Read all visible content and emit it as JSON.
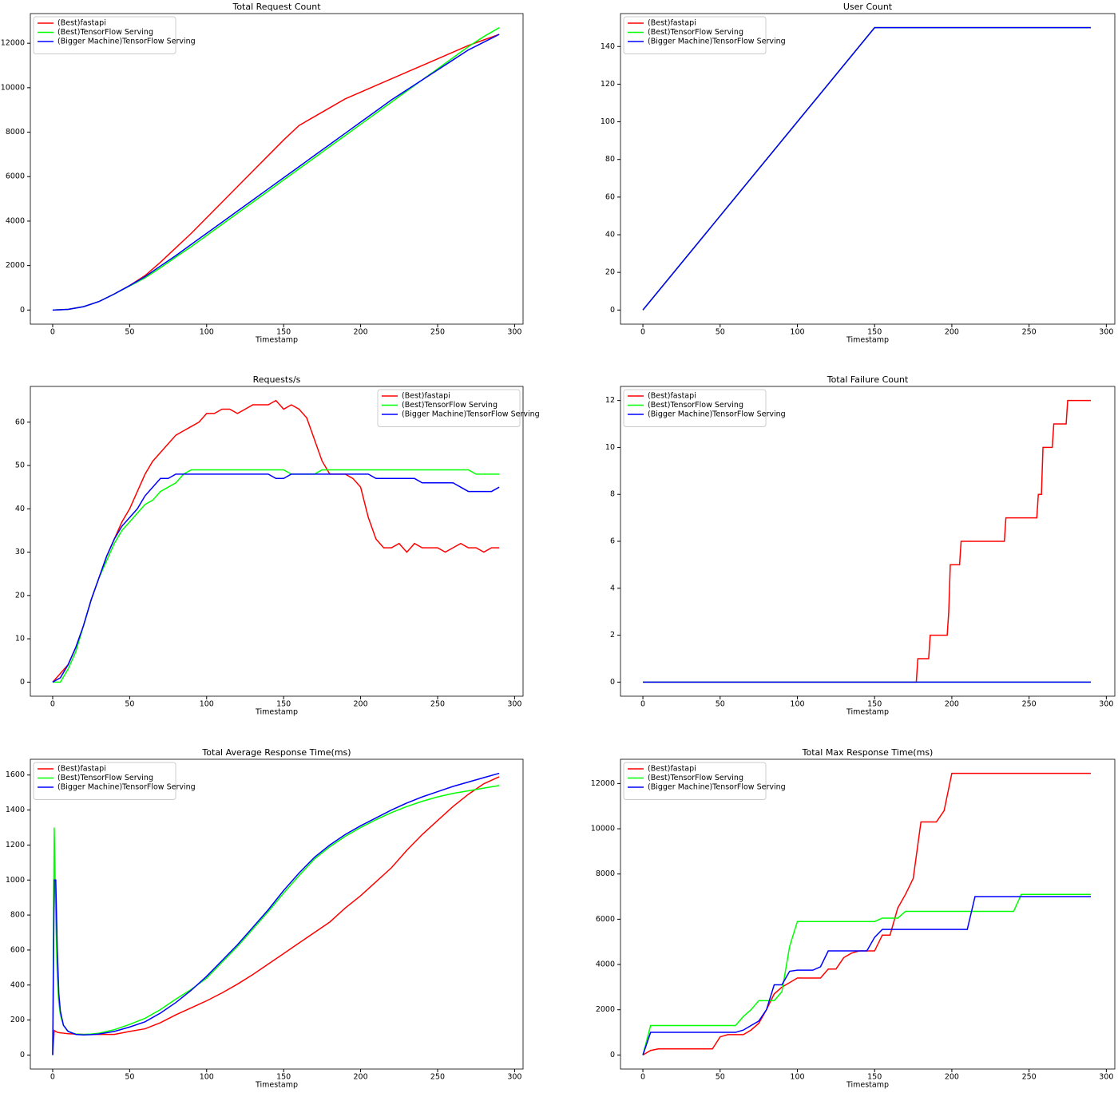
{
  "chart_data": [
    {
      "type": "line",
      "title": "Total Request Count",
      "x_label": "Timestamp",
      "legend": "upper left",
      "x": [
        0,
        10,
        20,
        30,
        40,
        50,
        60,
        70,
        80,
        90,
        100,
        110,
        120,
        130,
        140,
        150,
        160,
        170,
        180,
        190,
        200,
        210,
        220,
        230,
        240,
        250,
        260,
        270,
        280,
        290
      ],
      "series": [
        {
          "name": "(Best)fastapi",
          "color": "#ff0000",
          "values": [
            0,
            30,
            150,
            380,
            720,
            1100,
            1550,
            2150,
            2800,
            3450,
            4150,
            4850,
            5550,
            6250,
            6950,
            7650,
            8300,
            8700,
            9100,
            9500,
            9800,
            10100,
            10400,
            10700,
            11000,
            11300,
            11600,
            11900,
            12150,
            12400
          ]
        },
        {
          "name": "(Best)TensorFlow Serving",
          "color": "#00ff00",
          "values": [
            0,
            30,
            150,
            380,
            720,
            1080,
            1450,
            1900,
            2380,
            2850,
            3350,
            3850,
            4350,
            4850,
            5350,
            5850,
            6350,
            6850,
            7350,
            7850,
            8350,
            8850,
            9350,
            9850,
            10350,
            10850,
            11350,
            11850,
            12300,
            12700
          ]
        },
        {
          "name": "(Bigger Machine)TensorFlow Serving",
          "color": "#0000ff",
          "values": [
            0,
            30,
            150,
            380,
            720,
            1100,
            1500,
            1980,
            2450,
            2950,
            3450,
            3950,
            4450,
            4950,
            5450,
            5950,
            6450,
            6950,
            7450,
            7950,
            8450,
            8950,
            9450,
            9900,
            10350,
            10800,
            11250,
            11700,
            12050,
            12400
          ]
        }
      ],
      "xlim": [
        -14.5,
        305.5
      ],
      "xticks": [
        0,
        50,
        100,
        150,
        200,
        250,
        300
      ],
      "ylim": [
        -635,
        13335
      ],
      "yticks": [
        0,
        2000,
        4000,
        6000,
        8000,
        10000,
        12000
      ]
    },
    {
      "type": "line",
      "title": "User Count",
      "x_label": "Timestamp",
      "legend": "upper left",
      "x": [
        0,
        150,
        290
      ],
      "series": [
        {
          "name": "(Best)fastapi",
          "color": "#ff0000",
          "values": [
            0,
            150,
            150
          ]
        },
        {
          "name": "(Best)TensorFlow Serving",
          "color": "#00ff00",
          "values": [
            0,
            150,
            150
          ]
        },
        {
          "name": "(Bigger Machine)TensorFlow Serving",
          "color": "#0000ff",
          "values": [
            0,
            150,
            150
          ]
        }
      ],
      "xlim": [
        -14.5,
        305.5
      ],
      "xticks": [
        0,
        50,
        100,
        150,
        200,
        250,
        300
      ],
      "ylim": [
        -7.5,
        157.5
      ],
      "yticks": [
        0,
        20,
        40,
        60,
        80,
        100,
        120,
        140
      ]
    },
    {
      "type": "line",
      "title": "Requests/s",
      "x_label": "Timestamp",
      "legend": "upper right",
      "x": [
        0,
        5,
        10,
        15,
        20,
        25,
        30,
        35,
        40,
        45,
        50,
        55,
        60,
        65,
        70,
        75,
        80,
        85,
        90,
        95,
        100,
        105,
        110,
        115,
        120,
        125,
        130,
        135,
        140,
        145,
        150,
        155,
        160,
        165,
        170,
        175,
        180,
        185,
        190,
        195,
        200,
        205,
        210,
        215,
        220,
        225,
        230,
        235,
        240,
        245,
        250,
        255,
        260,
        265,
        270,
        275,
        280,
        285,
        290
      ],
      "series": [
        {
          "name": "(Best)fastapi",
          "color": "#ff0000",
          "values": [
            0,
            2,
            4,
            8,
            13,
            19,
            24,
            29,
            33,
            37,
            40,
            44,
            48,
            51,
            53,
            55,
            57,
            58,
            59,
            60,
            62,
            62,
            63,
            63,
            62,
            63,
            64,
            64,
            64,
            65,
            63,
            64,
            63,
            61,
            56,
            51,
            48,
            48,
            48,
            47,
            45,
            38,
            33,
            31,
            31,
            32,
            30,
            32,
            31,
            31,
            31,
            30,
            31,
            32,
            31,
            31,
            30,
            31,
            31
          ]
        },
        {
          "name": "(Best)TensorFlow Serving",
          "color": "#00ff00",
          "values": [
            0,
            0,
            3,
            7,
            13,
            19,
            24,
            28,
            32,
            35,
            37,
            39,
            41,
            42,
            44,
            45,
            46,
            48,
            49,
            49,
            49,
            49,
            49,
            49,
            49,
            49,
            49,
            49,
            49,
            49,
            49,
            48,
            48,
            48,
            48,
            49,
            49,
            49,
            49,
            49,
            49,
            49,
            49,
            49,
            49,
            49,
            49,
            49,
            49,
            49,
            49,
            49,
            49,
            49,
            49,
            48,
            48,
            48,
            48
          ]
        },
        {
          "name": "(Bigger Machine)TensorFlow Serving",
          "color": "#0000ff",
          "values": [
            0,
            1,
            4,
            8,
            13,
            19,
            24,
            29,
            33,
            36,
            38,
            40,
            43,
            45,
            47,
            47,
            48,
            48,
            48,
            48,
            48,
            48,
            48,
            48,
            48,
            48,
            48,
            48,
            48,
            47,
            47,
            48,
            48,
            48,
            48,
            48,
            48,
            48,
            48,
            48,
            48,
            48,
            47,
            47,
            47,
            47,
            47,
            47,
            46,
            46,
            46,
            46,
            46,
            45,
            44,
            44,
            44,
            44,
            45
          ]
        }
      ],
      "xlim": [
        -14.5,
        305.5
      ],
      "xticks": [
        0,
        50,
        100,
        150,
        200,
        250,
        300
      ],
      "ylim": [
        -3.25,
        68.25
      ],
      "yticks": [
        0,
        10,
        20,
        30,
        40,
        50,
        60
      ]
    },
    {
      "type": "line",
      "title": "Total Failure Count",
      "x_label": "Timestamp",
      "legend": "upper left",
      "x": [
        0,
        177,
        178,
        185,
        186,
        197,
        198,
        199,
        205,
        206,
        234,
        235,
        255,
        256,
        258,
        259,
        265,
        266,
        274,
        275,
        290
      ],
      "series": [
        {
          "name": "(Best)fastapi",
          "color": "#ff0000",
          "values": [
            0,
            0,
            1,
            1,
            2,
            2,
            3,
            5,
            5,
            6,
            6,
            7,
            7,
            8,
            8,
            10,
            10,
            11,
            11,
            12,
            12
          ]
        },
        {
          "name": "(Best)TensorFlow Serving",
          "color": "#00ff00",
          "values": [
            0,
            0,
            0,
            0,
            0,
            0,
            0,
            0,
            0,
            0,
            0,
            0,
            0,
            0,
            0,
            0,
            0,
            0,
            0,
            0,
            0
          ]
        },
        {
          "name": "(Bigger Machine)TensorFlow Serving",
          "color": "#0000ff",
          "values": [
            0,
            0,
            0,
            0,
            0,
            0,
            0,
            0,
            0,
            0,
            0,
            0,
            0,
            0,
            0,
            0,
            0,
            0,
            0,
            0,
            0
          ]
        }
      ],
      "xlim": [
        -14.5,
        305.5
      ],
      "xticks": [
        0,
        50,
        100,
        150,
        200,
        250,
        300
      ],
      "ylim": [
        -0.6,
        12.6
      ],
      "yticks": [
        0,
        2,
        4,
        6,
        8,
        10,
        12
      ]
    },
    {
      "type": "line",
      "title": "Total Average Response Time(ms)",
      "x_label": "Timestamp",
      "legend": "upper left",
      "x": [
        0,
        1,
        2,
        3,
        4,
        5,
        7,
        10,
        15,
        20,
        25,
        30,
        40,
        50,
        60,
        70,
        80,
        90,
        100,
        110,
        120,
        130,
        140,
        150,
        160,
        170,
        180,
        190,
        200,
        210,
        220,
        230,
        240,
        250,
        260,
        270,
        280,
        290
      ],
      "series": [
        {
          "name": "(Best)fastapi",
          "color": "#ff0000",
          "values": [
            0,
            140,
            135,
            130,
            128,
            127,
            125,
            122,
            120,
            118,
            118,
            118,
            118,
            135,
            150,
            185,
            230,
            270,
            310,
            355,
            405,
            460,
            520,
            580,
            640,
            700,
            760,
            840,
            910,
            990,
            1070,
            1170,
            1260,
            1340,
            1420,
            1490,
            1550,
            1590
          ]
        },
        {
          "name": "(Best)TensorFlow Serving",
          "color": "#00ff00",
          "values": [
            0,
            1300,
            800,
            450,
            300,
            230,
            170,
            135,
            120,
            118,
            120,
            125,
            145,
            175,
            210,
            260,
            320,
            375,
            440,
            530,
            620,
            720,
            820,
            925,
            1025,
            1120,
            1190,
            1250,
            1300,
            1345,
            1385,
            1420,
            1450,
            1475,
            1495,
            1510,
            1525,
            1540
          ]
        },
        {
          "name": "(Bigger Machine)TensorFlow Serving",
          "color": "#0000ff",
          "values": [
            0,
            1000,
            1000,
            600,
            350,
            250,
            170,
            135,
            118,
            115,
            117,
            120,
            135,
            160,
            190,
            240,
            300,
            370,
            450,
            540,
            630,
            730,
            830,
            940,
            1040,
            1130,
            1200,
            1260,
            1310,
            1355,
            1400,
            1440,
            1475,
            1505,
            1535,
            1560,
            1585,
            1610
          ]
        }
      ],
      "xlim": [
        -14.5,
        305.5
      ],
      "xticks": [
        0,
        50,
        100,
        150,
        200,
        250,
        300
      ],
      "ylim": [
        -80,
        1690
      ],
      "yticks": [
        0,
        200,
        400,
        600,
        800,
        1000,
        1200,
        1400,
        1600
      ]
    },
    {
      "type": "line",
      "title": "Total Max Response Time(ms)",
      "x_label": "Timestamp",
      "legend": "upper left",
      "x": [
        0,
        5,
        10,
        15,
        20,
        25,
        30,
        35,
        40,
        45,
        50,
        55,
        60,
        65,
        70,
        75,
        80,
        85,
        90,
        95,
        100,
        105,
        110,
        115,
        120,
        125,
        130,
        135,
        140,
        145,
        150,
        155,
        160,
        165,
        170,
        175,
        180,
        185,
        190,
        195,
        200,
        205,
        210,
        215,
        220,
        225,
        230,
        235,
        240,
        245,
        250,
        255,
        260,
        265,
        270,
        275,
        280,
        285,
        290
      ],
      "series": [
        {
          "name": "(Best)fastapi",
          "color": "#ff0000",
          "values": [
            0,
            200,
            270,
            270,
            270,
            270,
            270,
            270,
            270,
            270,
            800,
            900,
            900,
            900,
            1100,
            1400,
            2000,
            2700,
            3000,
            3200,
            3400,
            3400,
            3400,
            3400,
            3800,
            3800,
            4300,
            4500,
            4600,
            4600,
            4600,
            5300,
            5300,
            6500,
            7100,
            7800,
            10300,
            10300,
            10300,
            10800,
            12450,
            12450,
            12450,
            12450,
            12450,
            12450,
            12450,
            12450,
            12450,
            12450,
            12450,
            12450,
            12450,
            12450,
            12450,
            12450,
            12450,
            12450,
            12450
          ]
        },
        {
          "name": "(Best)TensorFlow Serving",
          "color": "#00ff00",
          "values": [
            0,
            1300,
            1300,
            1300,
            1300,
            1300,
            1300,
            1300,
            1300,
            1300,
            1300,
            1300,
            1300,
            1700,
            2000,
            2400,
            2400,
            2400,
            2800,
            4800,
            5900,
            5900,
            5900,
            5900,
            5900,
            5900,
            5900,
            5900,
            5900,
            5900,
            5900,
            6050,
            6050,
            6050,
            6350,
            6350,
            6350,
            6350,
            6350,
            6350,
            6350,
            6350,
            6350,
            6350,
            6350,
            6350,
            6350,
            6350,
            6350,
            7100,
            7100,
            7100,
            7100,
            7100,
            7100,
            7100,
            7100,
            7100,
            7100
          ]
        },
        {
          "name": "(Bigger Machine)TensorFlow Serving",
          "color": "#0000ff",
          "values": [
            0,
            1000,
            1000,
            1000,
            1000,
            1000,
            1000,
            1000,
            1000,
            1000,
            1000,
            1000,
            1000,
            1100,
            1300,
            1500,
            2000,
            3100,
            3100,
            3700,
            3750,
            3750,
            3750,
            3900,
            4600,
            4600,
            4600,
            4600,
            4600,
            4600,
            5200,
            5550,
            5550,
            5550,
            5550,
            5550,
            5550,
            5550,
            5550,
            5550,
            5550,
            5550,
            5550,
            7000,
            7000,
            7000,
            7000,
            7000,
            7000,
            7000,
            7000,
            7000,
            7000,
            7000,
            7000,
            7000,
            7000,
            7000,
            7000
          ]
        }
      ],
      "xlim": [
        -14.5,
        305.5
      ],
      "xticks": [
        0,
        50,
        100,
        150,
        200,
        250,
        300
      ],
      "ylim": [
        -622,
        13072
      ],
      "yticks": [
        0,
        2000,
        4000,
        6000,
        8000,
        10000,
        12000
      ]
    }
  ]
}
